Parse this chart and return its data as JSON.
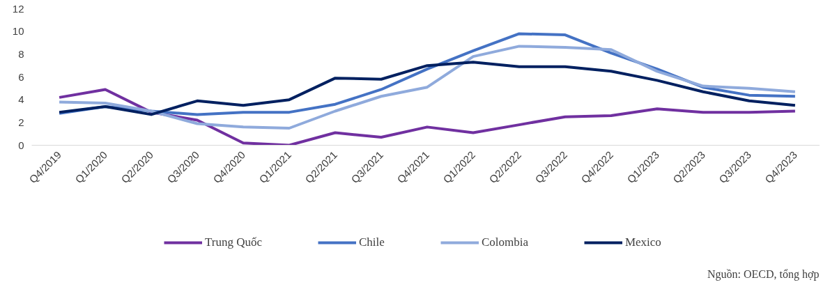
{
  "chart_data": {
    "type": "line",
    "categories": [
      "Q4/2019",
      "Q1/2020",
      "Q2/2020",
      "Q3/2020",
      "Q4/2020",
      "Q1/2021",
      "Q2/2021",
      "Q3/2021",
      "Q4/2021",
      "Q1/2022",
      "Q2/2022",
      "Q3/2022",
      "Q4/2022",
      "Q1/2023",
      "Q2/2023",
      "Q3/2023",
      "Q4/2023"
    ],
    "series": [
      {
        "name": "Trung Quốc",
        "color": "#7030a0",
        "values": [
          4.2,
          4.9,
          2.9,
          2.2,
          0.2,
          0.0,
          1.1,
          0.7,
          1.6,
          1.1,
          1.8,
          2.5,
          2.6,
          3.2,
          2.9,
          2.9,
          3.0
        ]
      },
      {
        "name": "Chile",
        "color": "#4472c4",
        "values": [
          2.8,
          3.4,
          3.0,
          2.7,
          2.9,
          2.9,
          3.6,
          4.9,
          6.7,
          8.3,
          9.8,
          9.7,
          8.1,
          6.7,
          5.1,
          4.4,
          4.3
        ]
      },
      {
        "name": "Colombia",
        "color": "#8faadc",
        "values": [
          3.8,
          3.7,
          3.0,
          1.9,
          1.6,
          1.5,
          3.0,
          4.3,
          5.1,
          7.8,
          8.7,
          8.6,
          8.4,
          6.5,
          5.2,
          5.0,
          4.7
        ]
      },
      {
        "name": "Mexico",
        "color": "#002060",
        "values": [
          2.9,
          3.4,
          2.7,
          3.9,
          3.5,
          4.0,
          5.9,
          5.8,
          7.0,
          7.3,
          6.9,
          6.9,
          6.5,
          5.7,
          4.7,
          3.9,
          3.5
        ]
      }
    ],
    "ylim": [
      0,
      12
    ],
    "yticks": [
      0,
      2,
      4,
      6,
      8,
      10,
      12
    ],
    "grid": false,
    "legend": "bottom",
    "marker": "none",
    "line_style": "solid",
    "annotations": [
      "Nguồn: OECD, tổng hợp"
    ]
  }
}
